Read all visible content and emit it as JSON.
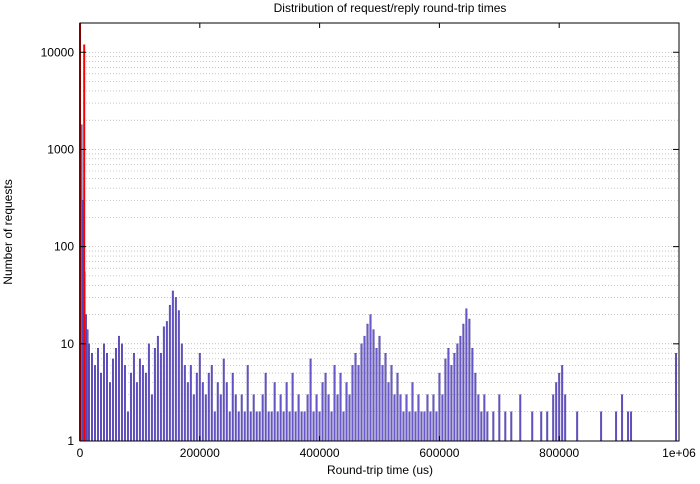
{
  "chart_data": {
    "type": "bar",
    "title": "Distribution of request/reply round-trip times",
    "xlabel": "Round-trip time (us)",
    "ylabel": "Number of requests",
    "yscale": "log",
    "xlim": [
      0,
      1000000
    ],
    "ylim": [
      1,
      20000
    ],
    "grid": "dotted horizontal minor/major",
    "x_ticks": [
      0,
      200000,
      400000,
      600000,
      800000,
      1000000
    ],
    "x_tick_labels": [
      "0",
      "200000",
      "400000",
      "600000",
      "800000",
      "1e+06"
    ],
    "y_ticks": [
      1,
      10,
      100,
      1000,
      10000
    ],
    "y_tick_labels": [
      "1",
      "10",
      "100",
      "1000",
      "10000"
    ],
    "bin_width_us": 2500,
    "colors": {
      "histogram": "#6a5acd",
      "highlight": "#ff0000"
    },
    "series": [
      {
        "values": [
          [
            2500,
            1800
          ],
          [
            5000,
            300
          ],
          [
            7500,
            55
          ],
          [
            10000,
            20
          ],
          [
            12500,
            14
          ],
          [
            15000,
            10
          ],
          [
            20000,
            8
          ],
          [
            25000,
            6
          ],
          [
            30000,
            9
          ],
          [
            35000,
            5
          ],
          [
            40000,
            10
          ],
          [
            45000,
            8
          ],
          [
            50000,
            4
          ],
          [
            55000,
            7
          ],
          [
            60000,
            9
          ],
          [
            65000,
            12
          ],
          [
            70000,
            10
          ],
          [
            75000,
            6
          ],
          [
            80000,
            2
          ],
          [
            85000,
            5
          ],
          [
            90000,
            8
          ],
          [
            95000,
            4
          ],
          [
            100000,
            7
          ],
          [
            105000,
            6
          ],
          [
            110000,
            5
          ],
          [
            115000,
            10
          ],
          [
            120000,
            3
          ],
          [
            125000,
            9
          ],
          [
            130000,
            12
          ],
          [
            135000,
            8
          ],
          [
            140000,
            15
          ],
          [
            145000,
            17
          ],
          [
            150000,
            25
          ],
          [
            155000,
            35
          ],
          [
            160000,
            30
          ],
          [
            165000,
            22
          ],
          [
            170000,
            10
          ],
          [
            175000,
            6
          ],
          [
            180000,
            4
          ],
          [
            185000,
            6
          ],
          [
            190000,
            3
          ],
          [
            195000,
            5
          ],
          [
            200000,
            8
          ],
          [
            205000,
            4
          ],
          [
            210000,
            3
          ],
          [
            215000,
            5
          ],
          [
            220000,
            6
          ],
          [
            225000,
            2
          ],
          [
            230000,
            4
          ],
          [
            235000,
            3
          ],
          [
            240000,
            7
          ],
          [
            245000,
            4
          ],
          [
            250000,
            2
          ],
          [
            255000,
            5
          ],
          [
            260000,
            3
          ],
          [
            265000,
            2
          ],
          [
            270000,
            3
          ],
          [
            275000,
            2
          ],
          [
            280000,
            6
          ],
          [
            285000,
            2
          ],
          [
            290000,
            3
          ],
          [
            295000,
            2
          ],
          [
            300000,
            2
          ],
          [
            305000,
            3
          ],
          [
            310000,
            5
          ],
          [
            315000,
            2
          ],
          [
            320000,
            2
          ],
          [
            325000,
            4
          ],
          [
            330000,
            2
          ],
          [
            335000,
            3
          ],
          [
            340000,
            2
          ],
          [
            345000,
            4
          ],
          [
            350000,
            2
          ],
          [
            355000,
            5
          ],
          [
            360000,
            2
          ],
          [
            365000,
            3
          ],
          [
            370000,
            2
          ],
          [
            375000,
            2
          ],
          [
            380000,
            3
          ],
          [
            385000,
            7
          ],
          [
            390000,
            2
          ],
          [
            395000,
            3
          ],
          [
            400000,
            2
          ],
          [
            405000,
            4
          ],
          [
            410000,
            5
          ],
          [
            415000,
            3
          ],
          [
            420000,
            2
          ],
          [
            425000,
            6
          ],
          [
            430000,
            3
          ],
          [
            435000,
            5
          ],
          [
            440000,
            2
          ],
          [
            445000,
            4
          ],
          [
            450000,
            3
          ],
          [
            455000,
            6
          ],
          [
            460000,
            8
          ],
          [
            465000,
            6
          ],
          [
            470000,
            10
          ],
          [
            475000,
            12
          ],
          [
            480000,
            16
          ],
          [
            485000,
            20
          ],
          [
            490000,
            14
          ],
          [
            495000,
            9
          ],
          [
            500000,
            12
          ],
          [
            505000,
            6
          ],
          [
            510000,
            8
          ],
          [
            515000,
            4
          ],
          [
            520000,
            6
          ],
          [
            525000,
            3
          ],
          [
            530000,
            5
          ],
          [
            535000,
            3
          ],
          [
            540000,
            2
          ],
          [
            545000,
            3
          ],
          [
            550000,
            2
          ],
          [
            555000,
            4
          ],
          [
            560000,
            2
          ],
          [
            565000,
            3
          ],
          [
            570000,
            2
          ],
          [
            575000,
            2
          ],
          [
            580000,
            3
          ],
          [
            585000,
            2
          ],
          [
            590000,
            3
          ],
          [
            595000,
            2
          ],
          [
            600000,
            5
          ],
          [
            605000,
            3
          ],
          [
            610000,
            7
          ],
          [
            615000,
            9
          ],
          [
            620000,
            6
          ],
          [
            625000,
            8
          ],
          [
            630000,
            10
          ],
          [
            635000,
            12
          ],
          [
            640000,
            16
          ],
          [
            645000,
            23
          ],
          [
            650000,
            18
          ],
          [
            655000,
            9
          ],
          [
            660000,
            5
          ],
          [
            665000,
            3
          ],
          [
            670000,
            2
          ],
          [
            675000,
            3
          ],
          [
            680000,
            2
          ],
          [
            690000,
            2
          ],
          [
            700000,
            3
          ],
          [
            710000,
            2
          ],
          [
            720000,
            2
          ],
          [
            735000,
            3
          ],
          [
            755000,
            2
          ],
          [
            770000,
            2
          ],
          [
            780000,
            2
          ],
          [
            790000,
            3
          ],
          [
            795000,
            4
          ],
          [
            800000,
            5
          ],
          [
            805000,
            6
          ],
          [
            810000,
            3
          ],
          [
            830000,
            2
          ],
          [
            870000,
            2
          ],
          [
            895000,
            2
          ],
          [
            905000,
            3
          ],
          [
            915000,
            2
          ],
          [
            920000,
            2
          ],
          [
            995000,
            8
          ]
        ]
      },
      {
        "values": [
          [
            0,
            20000
          ],
          [
            7000,
            12000
          ]
        ]
      }
    ]
  }
}
